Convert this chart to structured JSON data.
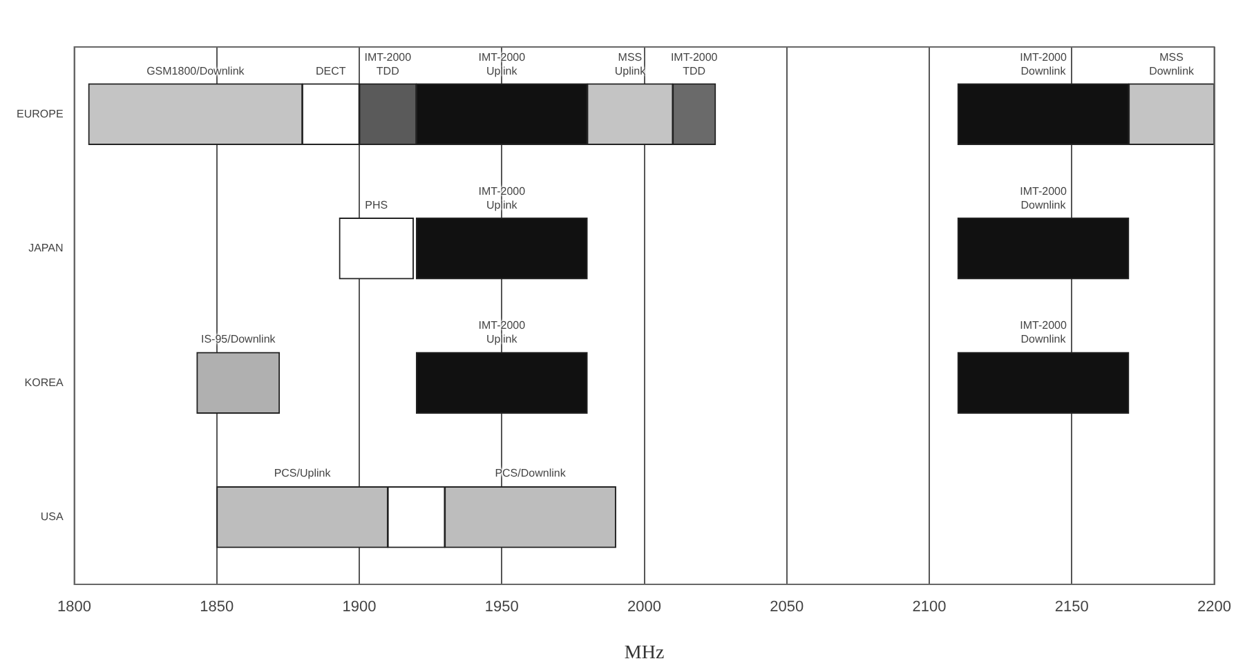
{
  "chart_data": {
    "type": "bar",
    "orientation": "horizontal",
    "xlabel": "MHz",
    "categories": [
      "EUROPE",
      "JAPAN",
      "KOREA",
      "USA"
    ],
    "series": [
      {
        "name": "GSM1800/Downlink",
        "color": "#c4c4c4",
        "values": [
          75,
          null,
          null,
          null
        ],
        "base": [
          1805,
          null,
          null,
          null
        ]
      },
      {
        "name": "DECT",
        "color": "#ffffff",
        "values": [
          20,
          null,
          null,
          null
        ],
        "base": [
          1880,
          null,
          null,
          null
        ]
      },
      {
        "name": "IMT-2000 TDD",
        "color": "#5a5a5a",
        "values": [
          20,
          null,
          null,
          null
        ],
        "base": [
          1900,
          null,
          null,
          null
        ]
      },
      {
        "name": "IMT-2000 Uplink",
        "color": "#111111",
        "values": [
          60,
          60,
          60,
          null
        ],
        "base": [
          1920,
          1920,
          1920,
          null
        ]
      },
      {
        "name": "MSS Uplink",
        "color": "#c4c4c4",
        "values": [
          30,
          null,
          null,
          null
        ],
        "base": [
          1980,
          null,
          null,
          null
        ]
      },
      {
        "name": "IMT-2000 TDD",
        "color": "#6a6a6a",
        "values": [
          15,
          null,
          null,
          null
        ],
        "base": [
          2010,
          null,
          null,
          null
        ]
      },
      {
        "name": "IMT-2000 Downlink",
        "color": "#111111",
        "values": [
          60,
          60,
          60,
          null
        ],
        "base": [
          2110,
          2110,
          2110,
          null
        ]
      },
      {
        "name": "MSS Downlink",
        "color": "#c4c4c4",
        "values": [
          30,
          null,
          null,
          null
        ],
        "base": [
          2170,
          null,
          null,
          null
        ]
      },
      {
        "name": "PHS",
        "color": "#ffffff",
        "values": [
          null,
          26,
          null,
          null
        ],
        "base": [
          null,
          1893,
          null,
          null
        ]
      },
      {
        "name": "IS-95/Downlink",
        "color": "#b0b0b0",
        "values": [
          null,
          null,
          29,
          null
        ],
        "base": [
          null,
          null,
          1843,
          null
        ]
      },
      {
        "name": "PCS/Uplink",
        "color": "#bdbdbd",
        "values": [
          null,
          null,
          null,
          60
        ],
        "base": [
          null,
          null,
          null,
          1850
        ]
      },
      {
        "color": "#ffffff",
        "values": [
          null,
          null,
          null,
          20
        ],
        "base": [
          null,
          null,
          null,
          1910
        ]
      },
      {
        "name": "PCS/Downlink",
        "color": "#bdbdbd",
        "values": [
          null,
          null,
          null,
          60
        ],
        "base": [
          null,
          null,
          null,
          1930
        ]
      }
    ],
    "xlim": [
      1800,
      2200
    ],
    "xticks": [
      1800,
      1850,
      1900,
      1950,
      2000,
      2050,
      2100,
      2150,
      2200
    ],
    "grid": "x",
    "legend": false
  }
}
